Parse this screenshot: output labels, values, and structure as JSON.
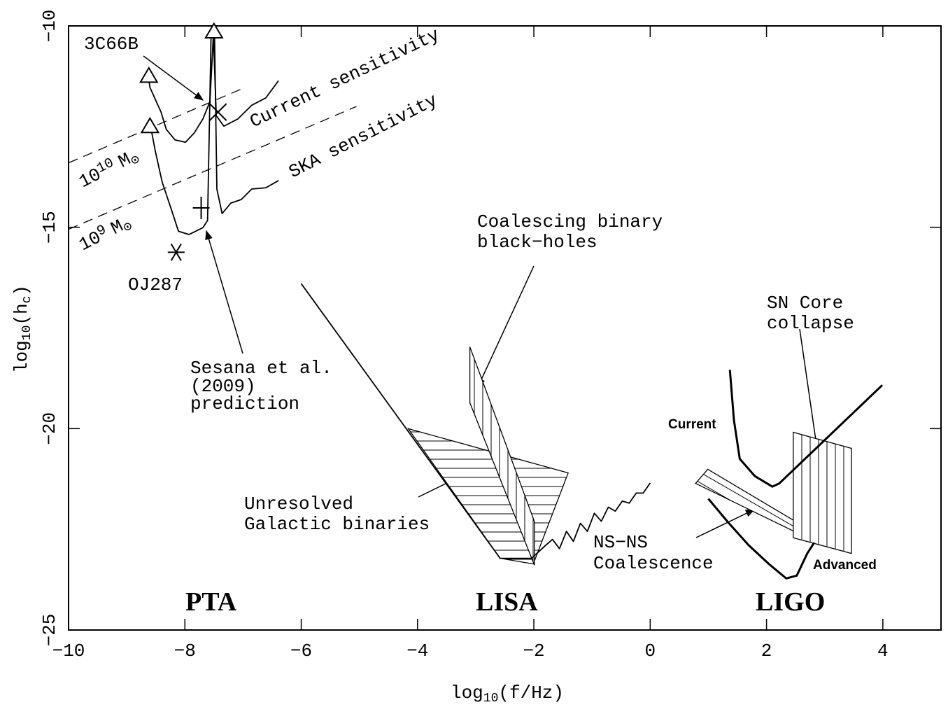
{
  "chart_data": {
    "type": "line",
    "xlabel": {
      "base": "log",
      "sub": "10",
      "rest": "(f/Hz)"
    },
    "ylabel": {
      "base": "log",
      "sub": "10",
      "rest": "(h",
      "sub2": "c",
      "close": ")"
    },
    "xlim": [
      -10,
      5
    ],
    "ylim": [
      -25,
      -10
    ],
    "xticks": [
      {
        "value": -10,
        "label": "−10"
      },
      {
        "value": -8,
        "label": "−8"
      },
      {
        "value": -6,
        "label": "−6"
      },
      {
        "value": -4,
        "label": "−4"
      },
      {
        "value": -2,
        "label": "−2"
      },
      0,
      2,
      4
    ],
    "yticks": [
      {
        "value": -25,
        "label": "−25"
      },
      {
        "value": -20,
        "label": "−20"
      },
      {
        "value": -15,
        "label": "−15"
      },
      {
        "value": -10,
        "label": "−10"
      }
    ],
    "lines": [
      {
        "style": "dashed",
        "x": [
          -10,
          -7.0
        ],
        "y": [
          -13.4,
          -11.55
        ]
      },
      {
        "style": "dashed",
        "x": [
          -10,
          -5.05
        ],
        "y": [
          -15.05,
          -12.0
        ]
      },
      {
        "style": "thin",
        "x": [
          -8.63,
          -8.6,
          -8.41,
          -8.32,
          -8.17,
          -7.99,
          -7.84,
          -7.69,
          -7.57,
          -7.51,
          -7.46,
          -7.33,
          -7.09,
          -6.85,
          -6.61,
          -6.39
        ],
        "y": [
          -11.23,
          -11.53,
          -12.14,
          -12.57,
          -12.83,
          -12.89,
          -12.66,
          -12.31,
          -11.88,
          -10.23,
          -12.23,
          -12.49,
          -12.31,
          -11.97,
          -11.79,
          -11.36
        ]
      },
      {
        "style": "thin",
        "x": [
          -8.59,
          -8.51,
          -8.39,
          -8.23,
          -8.11,
          -7.93,
          -7.69,
          -7.61,
          -7.55,
          -7.49,
          -7.45,
          -7.36,
          -7.21,
          -7.03,
          -6.85,
          -6.61,
          -6.39
        ],
        "y": [
          -12.49,
          -13.1,
          -13.88,
          -14.57,
          -15.1,
          -15.18,
          -15.01,
          -14.83,
          -10.25,
          -10.25,
          -14.05,
          -14.66,
          -14.4,
          -14.31,
          -14.05,
          -14.02,
          -13.84
        ]
      },
      {
        "style": "thin",
        "x": [
          -6.0,
          -2.58,
          -2.04,
          -1.8,
          -1.68,
          -1.56,
          -1.44,
          -1.32,
          -1.2,
          -1.08,
          -0.96,
          -0.84,
          -0.72,
          -0.6,
          -0.48,
          -0.36,
          -0.24,
          -0.12,
          0
        ],
        "y": [
          -16.4,
          -23.22,
          -23.22,
          -22.9,
          -22.75,
          -22.98,
          -22.55,
          -22.8,
          -22.35,
          -22.55,
          -22.1,
          -22.3,
          -21.95,
          -22.05,
          -21.8,
          -21.85,
          -21.6,
          -21.6,
          -21.35
        ]
      },
      {
        "style": "thick",
        "label": "Current",
        "x": [
          1.37,
          1.44,
          1.54,
          1.8,
          2.1,
          2.22,
          3.99
        ],
        "y": [
          -18.54,
          -19.79,
          -20.75,
          -21.18,
          -21.44,
          -21.36,
          -18.92
        ]
      },
      {
        "style": "thick",
        "label": "Advanced",
        "x": [
          1.0,
          1.33,
          1.69,
          2.04,
          2.34,
          2.52,
          2.7,
          2.82
        ],
        "y": [
          -21.74,
          -22.31,
          -22.89,
          -23.36,
          -23.72,
          -23.65,
          -23.1,
          -22.83
        ]
      }
    ],
    "regions": [
      {
        "hatch": "horizontal",
        "x": [
          -4.16,
          -1.41,
          -2.01,
          -2.58
        ],
        "y": [
          -20.0,
          -21.1,
          -23.36,
          -23.22
        ]
      },
      {
        "hatch": "vertical",
        "x": [
          -3.1,
          -1.99,
          -1.99,
          -3.1
        ],
        "y": [
          -17.97,
          -22.31,
          -23.39,
          -19.36
        ]
      },
      {
        "hatch": "diagonal",
        "x": [
          0.99,
          2.91,
          2.8,
          0.78
        ],
        "y": [
          -21.01,
          -22.66,
          -22.78,
          -21.36
        ]
      },
      {
        "hatch": "vertical",
        "x": [
          2.46,
          3.46,
          3.46,
          2.46
        ],
        "y": [
          -20.09,
          -20.49,
          -23.1,
          -22.71
        ]
      }
    ],
    "markers": [
      {
        "shape": "triangle",
        "x": -8.62,
        "y": -11.25
      },
      {
        "shape": "triangle",
        "x": -8.6,
        "y": -12.5
      },
      {
        "shape": "triangle",
        "x": -7.5,
        "y": -10.15
      },
      {
        "shape": "cross",
        "x": -7.43,
        "y": -12.14
      },
      {
        "shape": "plus",
        "x": -7.72,
        "y": -14.52
      },
      {
        "shape": "asterisk",
        "x": -8.15,
        "y": -15.62
      }
    ],
    "annotations": {
      "source_3c66b": "3C66B",
      "current_sensitivity": "Current sensitivity",
      "ska_sensitivity": "SKA sensitivity",
      "mass_1e10": {
        "base": "10",
        "exp": "10",
        "unit": "M",
        "sym": "⊙"
      },
      "mass_1e9": {
        "base": "10",
        "exp": "9",
        "unit": "M",
        "sym": "⊙"
      },
      "oj287": "OJ287",
      "sesana": [
        "Sesana et al.",
        "(2009)",
        "prediction"
      ],
      "coalescing": [
        "Coalescing binary",
        "black−holes"
      ],
      "sn": [
        "SN Core",
        "collapse"
      ],
      "unresolved": [
        "Unresolved",
        "Galactic binaries"
      ],
      "nsns": [
        "NS−NS",
        "Coalescence"
      ],
      "pta": "PTA",
      "lisa": "LISA",
      "ligo": "LIGO"
    }
  }
}
